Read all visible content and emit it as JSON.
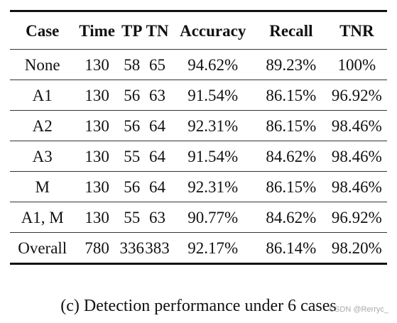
{
  "table": {
    "headers": [
      "Case",
      "Time",
      "TP",
      "TN",
      "Accuracy",
      "Recall",
      "TNR"
    ],
    "rows": [
      [
        "None",
        "130",
        "58",
        "65",
        "94.62%",
        "89.23%",
        "100%"
      ],
      [
        "A1",
        "130",
        "56",
        "63",
        "91.54%",
        "86.15%",
        "96.92%"
      ],
      [
        "A2",
        "130",
        "56",
        "64",
        "92.31%",
        "86.15%",
        "98.46%"
      ],
      [
        "A3",
        "130",
        "55",
        "64",
        "91.54%",
        "84.62%",
        "98.46%"
      ],
      [
        "M",
        "130",
        "56",
        "64",
        "92.31%",
        "86.15%",
        "98.46%"
      ],
      [
        "A1, M",
        "130",
        "55",
        "63",
        "90.77%",
        "84.62%",
        "96.92%"
      ],
      [
        "Overall",
        "780",
        "336",
        "383",
        "92.17%",
        "86.14%",
        "98.20%"
      ]
    ]
  },
  "caption": "(c) Detection performance under 6 cases",
  "watermark": "CSDN @Rerryc_"
}
